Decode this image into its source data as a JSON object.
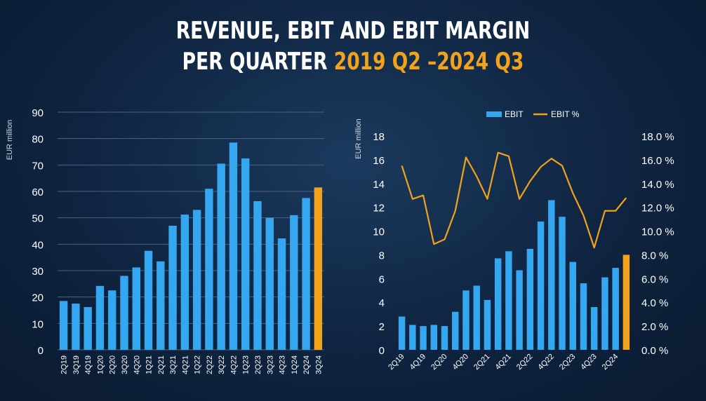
{
  "header": {
    "title_line1": "REVENUE, EBIT AND EBIT MARGIN",
    "title_line2_white": "PER QUARTER ",
    "title_line2_accent": "2019 Q2 –2024 Q3"
  },
  "colors": {
    "bar": "#35a7f0",
    "bar_highlight": "#f2a21b",
    "line": "#f2a21b",
    "grid": "#4a6380"
  },
  "chart_data": [
    {
      "type": "bar",
      "title": "",
      "ylabel": "EUR million",
      "xlabel": "",
      "ylim": [
        0,
        90
      ],
      "yticks": [
        0,
        10,
        20,
        30,
        40,
        50,
        60,
        70,
        80,
        90
      ],
      "grid": true,
      "categories": [
        "2Q19",
        "3Q19",
        "4Q19",
        "1Q20",
        "2Q20",
        "3Q20",
        "4Q20",
        "1Q21",
        "2Q21",
        "3Q21",
        "4Q21",
        "1Q22",
        "2Q22",
        "3Q22",
        "4Q22",
        "1Q23",
        "2Q23",
        "3Q23",
        "4Q23",
        "1Q24",
        "2Q24",
        "3Q24"
      ],
      "values": [
        18.5,
        17.5,
        16.2,
        24.2,
        22.5,
        28,
        31.2,
        37.5,
        33.5,
        47,
        51.2,
        53,
        61,
        70.5,
        78.5,
        72.5,
        56.3,
        50,
        42.2,
        51,
        57.5,
        61.5
      ],
      "highlight_last": true
    },
    {
      "type": "bar+line",
      "title": "",
      "ylabel": "EUR million",
      "xlabel": "",
      "legend": {
        "position": "top",
        "entries": [
          "EBIT",
          "EBIT %"
        ]
      },
      "ylim": [
        0,
        18
      ],
      "yticks": [
        0,
        2,
        4,
        6,
        8,
        10,
        12,
        14,
        16,
        18
      ],
      "y2lim": [
        0,
        18
      ],
      "y2ticks": [
        "0.0 %",
        "2.0 %",
        "4.0 %",
        "6.0 %",
        "8.0 %",
        "10.0 %",
        "12.0 %",
        "14.0 %",
        "16.0 %",
        "18.0 %"
      ],
      "grid": false,
      "categories": [
        "2Q19",
        "3Q19",
        "4Q19",
        "1Q20",
        "2Q20",
        "3Q20",
        "4Q20",
        "1Q21",
        "2Q21",
        "3Q21",
        "4Q21",
        "1Q22",
        "2Q22",
        "3Q22",
        "4Q22",
        "1Q23",
        "2Q23",
        "3Q23",
        "4Q23",
        "1Q24",
        "2Q24",
        "3Q24"
      ],
      "xtick_labels_shown": [
        "2Q19",
        "4Q19",
        "2Q20",
        "4Q20",
        "2Q21",
        "4Q21",
        "2Q22",
        "4Q22",
        "2Q23",
        "4Q23",
        "2Q24"
      ],
      "series": [
        {
          "name": "EBIT",
          "type": "bar",
          "values": [
            2.8,
            2.1,
            2.0,
            2.1,
            2.0,
            3.2,
            5.0,
            5.4,
            4.2,
            7.7,
            8.3,
            6.7,
            8.5,
            10.8,
            12.6,
            11.2,
            7.4,
            5.6,
            3.6,
            6.1,
            6.9,
            8.0
          ]
        },
        {
          "name": "EBIT %",
          "type": "line",
          "values": [
            15.5,
            12.7,
            13.0,
            8.9,
            9.3,
            11.7,
            16.2,
            14.6,
            12.7,
            16.6,
            16.3,
            12.7,
            14.2,
            15.4,
            16.1,
            15.5,
            13.2,
            11.3,
            8.6,
            11.7,
            11.7,
            12.8
          ]
        }
      ],
      "highlight_last": true
    }
  ]
}
